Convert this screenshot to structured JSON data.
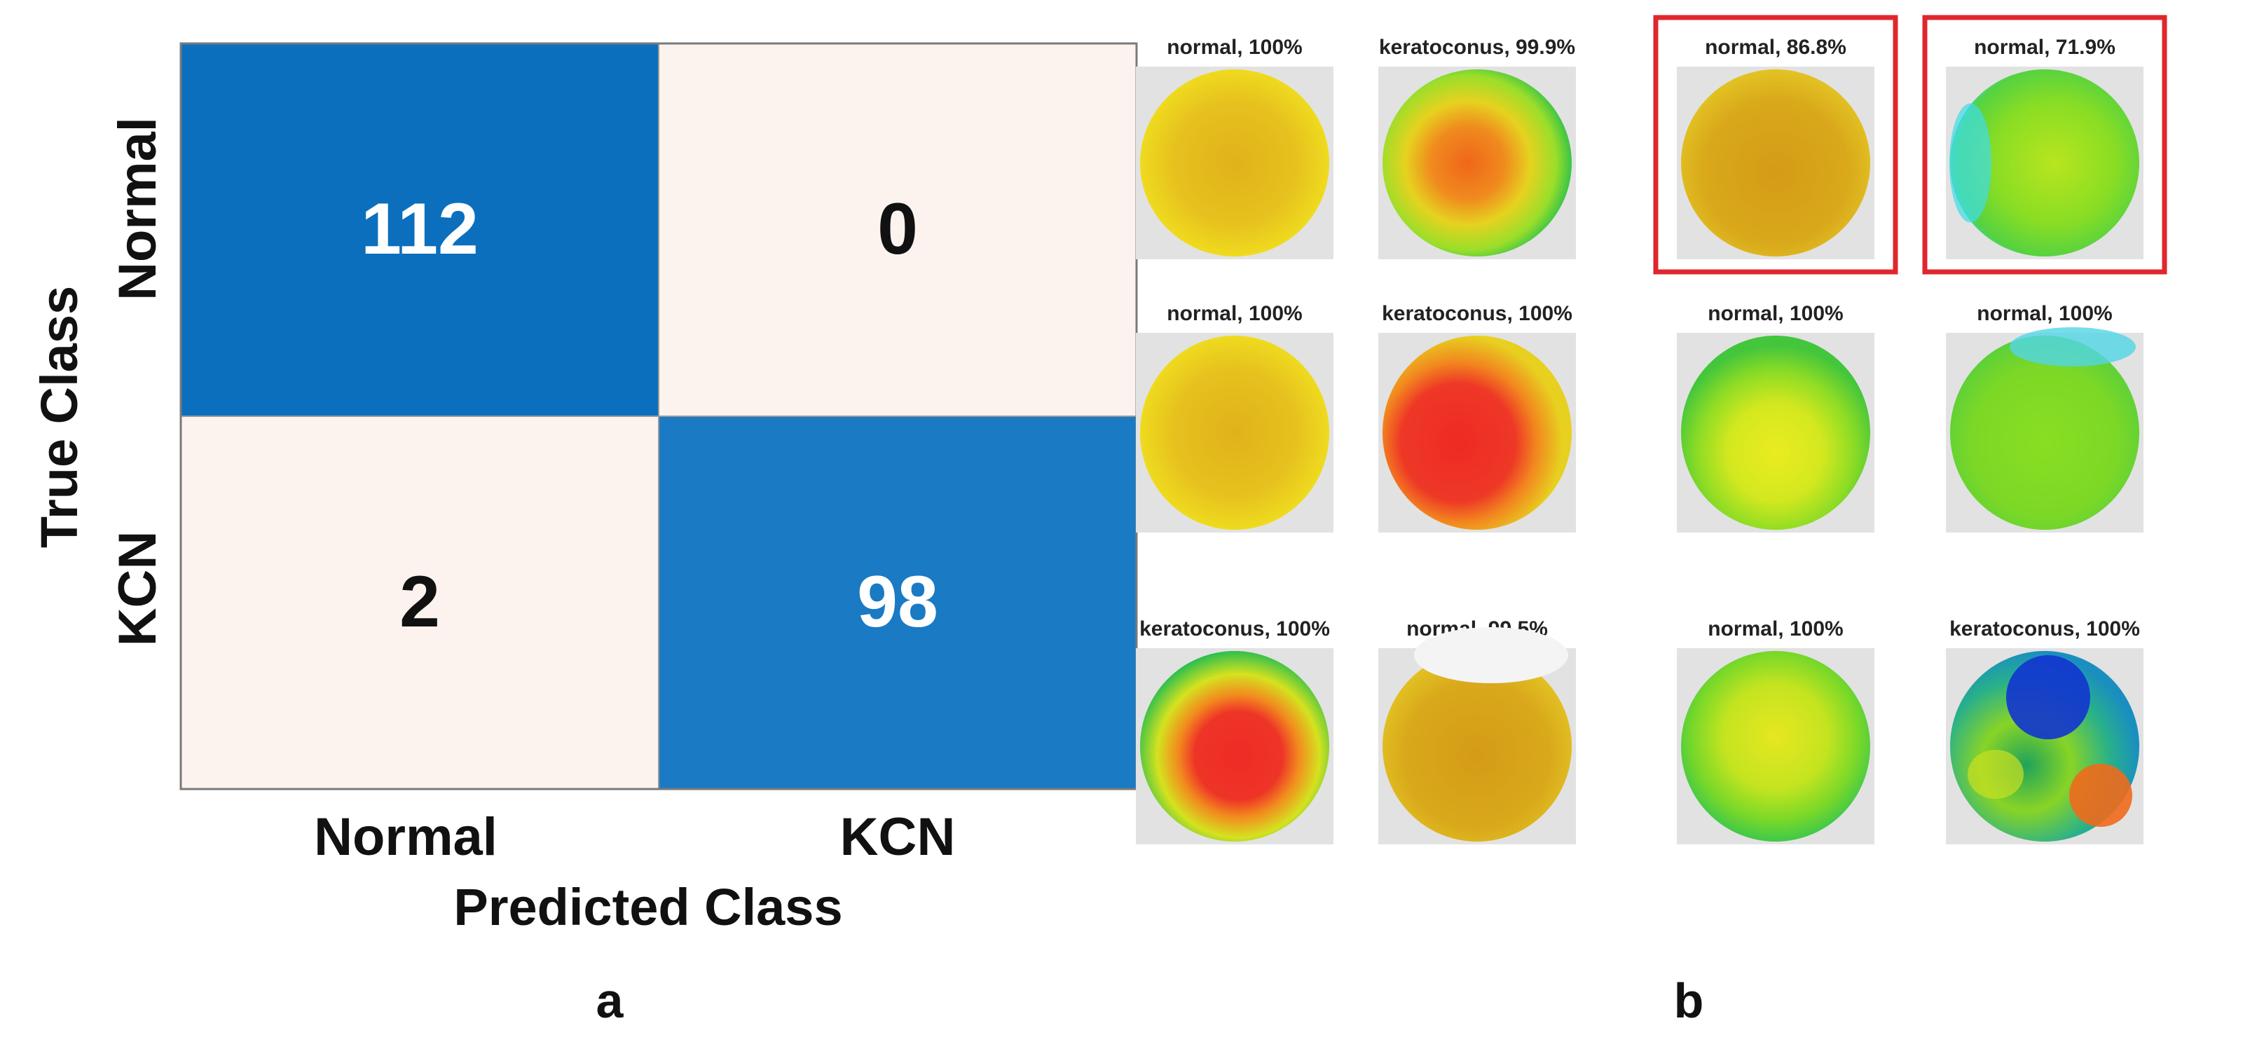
{
  "panels": {
    "left_label": "a",
    "right_label": "b"
  },
  "chart_data": [
    {
      "type": "heatmap",
      "title": "",
      "xlabel": "Predicted Class",
      "ylabel": "True Class",
      "x_categories": [
        "Normal",
        "KCN"
      ],
      "y_categories": [
        "Normal",
        "KCN"
      ],
      "values": [
        [
          112,
          0
        ],
        [
          2,
          98
        ]
      ],
      "colors": {
        "high": "#0b6fbd",
        "high_alt": "#1a7ac4",
        "low": "#fcf3ef",
        "high_text": "#ffffff",
        "low_text": "#111111"
      }
    }
  ],
  "topography_grid": {
    "rows": [
      [
        {
          "label": "normal, 100%",
          "pattern": "yellow-uniform",
          "highlighted": false
        },
        {
          "label": "keratoconus, 99.9%",
          "pattern": "orange-center-green-rim",
          "highlighted": false
        },
        {
          "label": "normal, 86.8%",
          "pattern": "dark-yellow-uniform",
          "highlighted": true
        },
        {
          "label": "normal, 71.9%",
          "pattern": "green-cyan-rim",
          "highlighted": true
        }
      ],
      [
        {
          "label": "normal, 100%",
          "pattern": "yellow-uniform",
          "highlighted": false
        },
        {
          "label": "keratoconus, 100%",
          "pattern": "red-large-center",
          "highlighted": false
        },
        {
          "label": "normal, 100%",
          "pattern": "green-yellow-center",
          "highlighted": false
        },
        {
          "label": "normal, 100%",
          "pattern": "green-uniform-cyan-top",
          "highlighted": false
        }
      ],
      [
        {
          "label": "keratoconus, 100%",
          "pattern": "red-center-green-rim",
          "highlighted": false
        },
        {
          "label": "normal, 99.5%",
          "pattern": "dark-yellow-white-top",
          "highlighted": false
        },
        {
          "label": "normal, 100%",
          "pattern": "green-yellow-mixed",
          "highlighted": false
        },
        {
          "label": "keratoconus, 100%",
          "pattern": "blue-green-orange",
          "highlighted": false
        }
      ]
    ],
    "highlight_color": "#e0262d"
  }
}
